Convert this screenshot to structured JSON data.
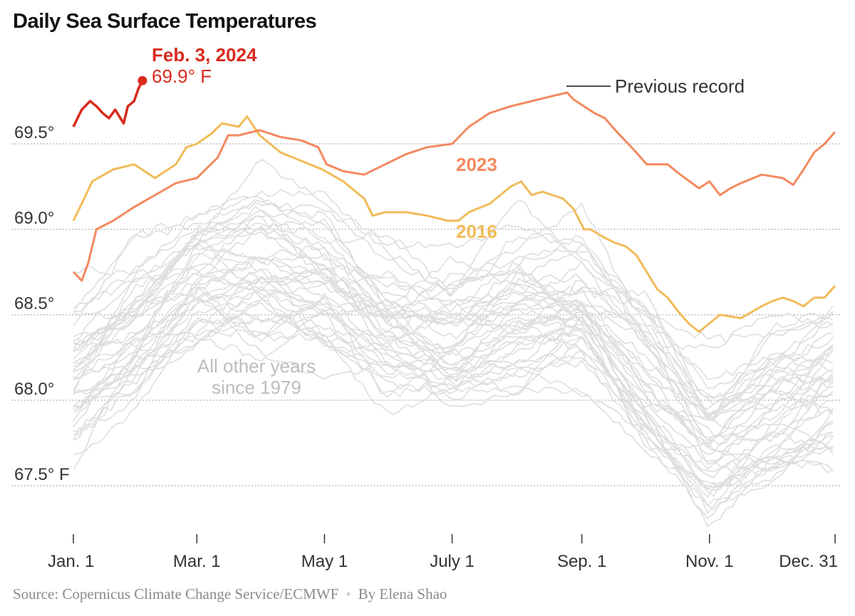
{
  "chart_data": {
    "type": "line",
    "title": "Daily Sea Surface Temperatures",
    "xlabel": "",
    "ylabel": "",
    "x_ticks": [
      "Jan. 1",
      "Mar. 1",
      "May 1",
      "July 1",
      "Sep. 1",
      "Nov. 1",
      "Dec. 31"
    ],
    "x_tick_days": [
      1,
      60,
      121,
      182,
      244,
      305,
      365
    ],
    "y_ticks": [
      "67.5° F",
      "68.0°",
      "68.5°",
      "69.0°",
      "69.5°"
    ],
    "y_tick_values": [
      67.5,
      68.0,
      68.5,
      69.0,
      69.5
    ],
    "ylim": [
      67.2,
      69.95
    ],
    "xlim": [
      1,
      366
    ],
    "grid": "dotted horizontal",
    "series": [
      {
        "name": "2023",
        "color": "#f4895f",
        "day": [
          1,
          5,
          8,
          12,
          20,
          30,
          40,
          50,
          60,
          70,
          75,
          80,
          90,
          100,
          110,
          118,
          122,
          130,
          140,
          150,
          160,
          170,
          182,
          190,
          200,
          210,
          220,
          230,
          237,
          240,
          245,
          250,
          255,
          260,
          270,
          275,
          285,
          290,
          300,
          305,
          310,
          315,
          320,
          330,
          340,
          345,
          350,
          355,
          360,
          365
        ],
        "value": [
          68.75,
          68.7,
          68.8,
          69.0,
          69.05,
          69.13,
          69.2,
          69.27,
          69.3,
          69.42,
          69.55,
          69.55,
          69.58,
          69.54,
          69.52,
          69.48,
          69.38,
          69.34,
          69.32,
          69.38,
          69.44,
          69.48,
          69.5,
          69.6,
          69.68,
          69.72,
          69.75,
          69.78,
          69.8,
          69.76,
          69.72,
          69.68,
          69.65,
          69.58,
          69.45,
          69.38,
          69.38,
          69.33,
          69.24,
          69.28,
          69.2,
          69.24,
          69.27,
          69.32,
          69.3,
          69.26,
          69.35,
          69.45,
          69.5,
          69.57
        ]
      },
      {
        "name": "2016",
        "color": "#f1bb58",
        "day": [
          1,
          5,
          10,
          20,
          30,
          40,
          50,
          55,
          60,
          67,
          72,
          80,
          84,
          90,
          100,
          110,
          120,
          130,
          140,
          144,
          150,
          160,
          170,
          180,
          185,
          190,
          200,
          205,
          210,
          215,
          220,
          225,
          230,
          235,
          240,
          245,
          248,
          255,
          260,
          265,
          270,
          275,
          280,
          285,
          290,
          295,
          300,
          305,
          310,
          320,
          330,
          335,
          340,
          345,
          350,
          355,
          360,
          365
        ],
        "value": [
          69.05,
          69.15,
          69.28,
          69.35,
          69.38,
          69.3,
          69.38,
          69.48,
          69.5,
          69.56,
          69.62,
          69.6,
          69.66,
          69.55,
          69.45,
          69.4,
          69.35,
          69.28,
          69.18,
          69.08,
          69.1,
          69.1,
          69.08,
          69.05,
          69.05,
          69.1,
          69.15,
          69.2,
          69.25,
          69.28,
          69.2,
          69.22,
          69.2,
          69.18,
          69.12,
          69.0,
          69.0,
          68.95,
          68.92,
          68.9,
          68.85,
          68.75,
          68.65,
          68.6,
          68.52,
          68.45,
          68.4,
          68.45,
          68.5,
          68.48,
          68.55,
          68.58,
          68.6,
          68.58,
          68.55,
          68.6,
          68.6,
          68.67
        ]
      },
      {
        "name": "2024",
        "color": "#d92a1e",
        "day": [
          1,
          5,
          9,
          12,
          15,
          18,
          21,
          25,
          27,
          30,
          32,
          34
        ],
        "value": [
          69.6,
          69.7,
          69.75,
          69.72,
          69.68,
          69.65,
          69.7,
          69.62,
          69.72,
          69.75,
          69.82,
          69.87
        ]
      }
    ],
    "background_series_label": [
      "All other years",
      "since 1979"
    ],
    "annotations": {
      "latest_date": "Feb. 3, 2024",
      "latest_value": "69.9° F",
      "previous_record": "Previous record",
      "label_2023": "2023",
      "label_2016": "2016"
    }
  },
  "footer": {
    "source": "Source: Copernicus Climate Change Service/ECMWF",
    "byline": "By Elena Shao"
  },
  "colors": {
    "series_2024": "#d92a1e",
    "series_2023": "#f4895f",
    "series_2016": "#f1bb58",
    "background_years": "#dedede",
    "gridline": "#9a9a9a",
    "text": "#121212",
    "muted_text": "#8a8a8a"
  }
}
